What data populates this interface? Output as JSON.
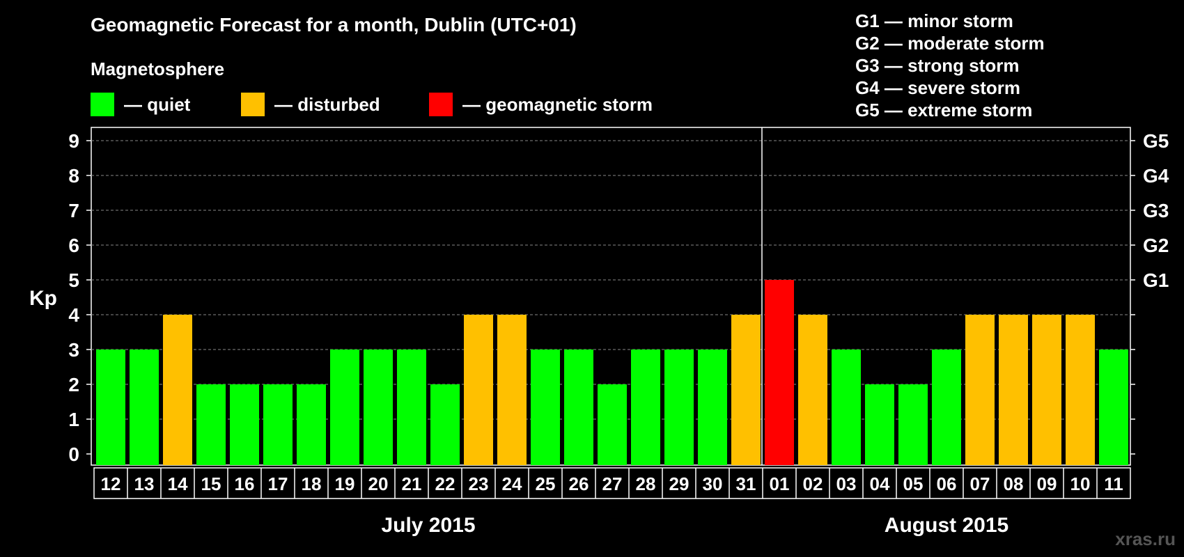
{
  "chart_data": {
    "type": "bar",
    "title": "Geomagnetic Forecast for a month, Dublin (UTC+01)",
    "subtitle": "Magnetosphere",
    "ylabel": "Kp",
    "ylim": [
      0,
      9
    ],
    "yticks": [
      "0",
      "1",
      "2",
      "3",
      "4",
      "5",
      "6",
      "7",
      "8",
      "9"
    ],
    "right_axis_labels": [
      {
        "kp": 5,
        "label": "G1"
      },
      {
        "kp": 6,
        "label": "G2"
      },
      {
        "kp": 7,
        "label": "G3"
      },
      {
        "kp": 8,
        "label": "G4"
      },
      {
        "kp": 9,
        "label": "G5"
      }
    ],
    "categories": [
      "12",
      "13",
      "14",
      "15",
      "16",
      "17",
      "18",
      "19",
      "20",
      "21",
      "22",
      "23",
      "24",
      "25",
      "26",
      "27",
      "28",
      "29",
      "30",
      "31",
      "01",
      "02",
      "03",
      "04",
      "05",
      "06",
      "07",
      "08",
      "09",
      "10",
      "11"
    ],
    "values": [
      3,
      3,
      4,
      2,
      2,
      2,
      2,
      3,
      3,
      3,
      2,
      4,
      4,
      3,
      3,
      2,
      3,
      3,
      3,
      4,
      5,
      4,
      3,
      2,
      2,
      3,
      4,
      4,
      4,
      4,
      3
    ],
    "levels": [
      "quiet",
      "quiet",
      "disturbed",
      "quiet",
      "quiet",
      "quiet",
      "quiet",
      "quiet",
      "quiet",
      "quiet",
      "quiet",
      "disturbed",
      "disturbed",
      "quiet",
      "quiet",
      "quiet",
      "quiet",
      "quiet",
      "quiet",
      "disturbed",
      "storm",
      "disturbed",
      "quiet",
      "quiet",
      "quiet",
      "quiet",
      "disturbed",
      "disturbed",
      "disturbed",
      "disturbed",
      "quiet"
    ],
    "months": [
      {
        "label": "July 2015",
        "start": 0,
        "end": 19
      },
      {
        "label": "August 2015",
        "start": 20,
        "end": 30
      }
    ],
    "legend": [
      {
        "level": "quiet",
        "label": "— quiet",
        "color": "#00ff00"
      },
      {
        "level": "disturbed",
        "label": "— disturbed",
        "color": "#ffc000"
      },
      {
        "level": "storm",
        "label": "— geomagnetic storm",
        "color": "#ff0000"
      }
    ],
    "storm_scale": [
      "G1 — minor storm",
      "G2 — moderate storm",
      "G3 — strong storm",
      "G4 — severe storm",
      "G5 — extreme storm"
    ],
    "grid": true
  },
  "watermark": "xras.ru"
}
